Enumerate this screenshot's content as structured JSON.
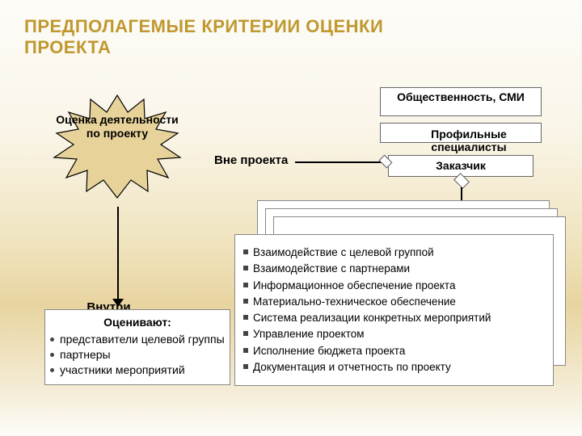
{
  "title": "ПРЕДПОЛАГЕМЫЕ КРИТЕРИИ ОЦЕНКИ ПРОЕКТА",
  "star_label": "Оценка деятельности по проекту",
  "external_label": "Вне проекта",
  "external_boxes": {
    "box1": "Общественность, СМИ",
    "box2_below": "Профильные специалисты",
    "box3": "Заказчик"
  },
  "internal_label": "Внутри проекта",
  "evaluators": {
    "header": "Оценивают:",
    "items": [
      "представители целевой группы",
      "партнеры",
      "участники мероприятий"
    ]
  },
  "criteria": [
    "Взаимодействие с целевой группой",
    "Взаимодействие с партнерами",
    "Информационное обеспечение проекта",
    "Материально-техническое обеспечение",
    "Система реализации конкретных мероприятий",
    "Управление проектом",
    "Исполнение бюджета проекта",
    "Документация и отчетность по проекту"
  ],
  "colors": {
    "title": "#c09830",
    "star_fill": "#e7d39a",
    "star_stroke": "#000000",
    "box_bg": "#ffffff",
    "box_border": "#888888"
  }
}
